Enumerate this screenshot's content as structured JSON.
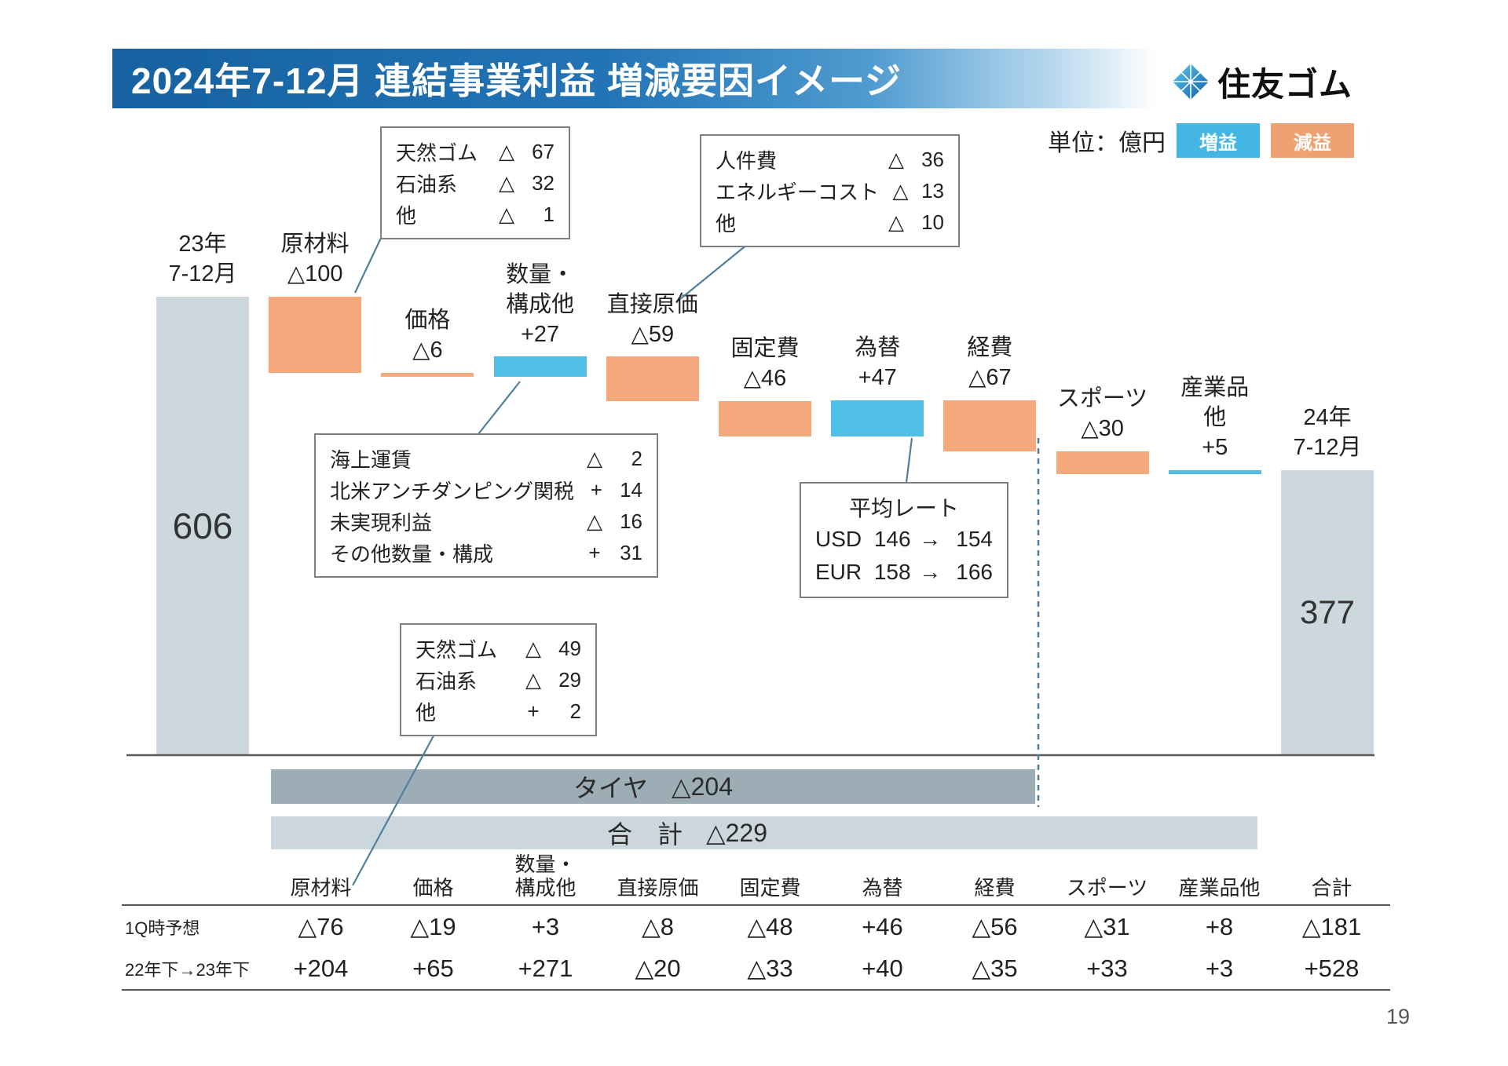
{
  "header": {
    "title": "2024年7-12月 連結事業利益 増減要因イメージ",
    "logo_text": "住友ゴム",
    "unit_label": "単位：億円",
    "legend_increase": "増益",
    "legend_decrease": "減益"
  },
  "colors": {
    "increase": "#50bfe8",
    "decrease": "#f3a97c",
    "total_bar": "#cdd8de",
    "tire_bar": "#9cadb5",
    "sum_bar": "#cbd7dc",
    "title_blue": "#2374b6",
    "connector": "#4f7f9f"
  },
  "chart_data": {
    "type": "waterfall",
    "title": "2024年7-12月 連結事業利益 増減要因イメージ",
    "unit": "億円",
    "start": {
      "label_lines": [
        "23年",
        "7-12月"
      ],
      "value": 606,
      "display": "606"
    },
    "end": {
      "label_lines": [
        "24年",
        "7-12月"
      ],
      "value": 377,
      "display": "377"
    },
    "steps": [
      {
        "name": "原材料",
        "label_lines": [
          "原材料"
        ],
        "value": -100,
        "display": "△100"
      },
      {
        "name": "価格",
        "label_lines": [
          "価格"
        ],
        "value": -6,
        "display": "△6"
      },
      {
        "name": "数量・構成他",
        "label_lines": [
          "数量・",
          "構成他"
        ],
        "value": 27,
        "display": "+27"
      },
      {
        "name": "直接原価",
        "label_lines": [
          "直接原価"
        ],
        "value": -59,
        "display": "△59"
      },
      {
        "name": "固定費",
        "label_lines": [
          "固定費"
        ],
        "value": -46,
        "display": "△46"
      },
      {
        "name": "為替",
        "label_lines": [
          "為替"
        ],
        "value": 47,
        "display": "+47"
      },
      {
        "name": "経費",
        "label_lines": [
          "経費"
        ],
        "value": -67,
        "display": "△67"
      },
      {
        "name": "スポーツ",
        "label_lines": [
          "スポーツ"
        ],
        "value": -30,
        "display": "△30"
      },
      {
        "name": "産業品他",
        "label_lines": [
          "産業品",
          "他"
        ],
        "value": 5,
        "display": "+5"
      }
    ],
    "colors": {
      "increase": "#50bfe8",
      "decrease": "#f3a97c",
      "total": "#cdd8de"
    }
  },
  "callouts": {
    "raw_materials": {
      "rows": [
        {
          "label": "天然ゴム",
          "sign": "△",
          "value": "67"
        },
        {
          "label": "石油系",
          "sign": "△",
          "value": "32"
        },
        {
          "label": "他",
          "sign": "△",
          "value": "1"
        }
      ]
    },
    "direct_cost": {
      "rows": [
        {
          "label": "人件費",
          "sign": "△",
          "value": "36"
        },
        {
          "label": "エネルギーコスト",
          "sign": "△",
          "value": "13"
        },
        {
          "label": "他",
          "sign": "△",
          "value": "10"
        }
      ]
    },
    "volume_mix": {
      "rows": [
        {
          "label": "海上運賃",
          "sign": "△",
          "value": "2"
        },
        {
          "label": "北米アンチダンピング関税",
          "sign": "+",
          "value": "14"
        },
        {
          "label": "未実現利益",
          "sign": "△",
          "value": "16"
        },
        {
          "label": "その他数量・構成",
          "sign": "+",
          "value": "31"
        }
      ]
    },
    "exchange_rate": {
      "title": "平均レート",
      "rows": [
        {
          "currency": "USD",
          "from": "146",
          "arrow": "→",
          "to": "154"
        },
        {
          "currency": "EUR",
          "from": "158",
          "arrow": "→",
          "to": "166"
        }
      ]
    },
    "raw_materials_bottom": {
      "rows": [
        {
          "label": "天然ゴム",
          "sign": "△",
          "value": "49"
        },
        {
          "label": "石油系",
          "sign": "△",
          "value": "29"
        },
        {
          "label": "他",
          "sign": "+",
          "value": "2"
        }
      ]
    }
  },
  "summary_bars": {
    "tire": {
      "label": "タイヤ",
      "value": "△204"
    },
    "total": {
      "label": "合　計",
      "value": "△229"
    }
  },
  "table": {
    "columns": [
      [
        "原材料"
      ],
      [
        "価格"
      ],
      [
        "数量・",
        "構成他"
      ],
      [
        "直接原価"
      ],
      [
        "固定費"
      ],
      [
        "為替"
      ],
      [
        "経費"
      ],
      [
        "スポーツ"
      ],
      [
        "産業品他"
      ],
      [
        "合計"
      ]
    ],
    "rows": [
      {
        "label": "1Q時予想",
        "values": [
          "△76",
          "△19",
          "+3",
          "△8",
          "△48",
          "+46",
          "△56",
          "△31",
          "+8",
          "△181"
        ]
      },
      {
        "label": "22年下→23年下",
        "values": [
          "+204",
          "+65",
          "+271",
          "△20",
          "△33",
          "+40",
          "△35",
          "+33",
          "+3",
          "+528"
        ]
      }
    ]
  },
  "footer": {
    "page_number": "19"
  }
}
